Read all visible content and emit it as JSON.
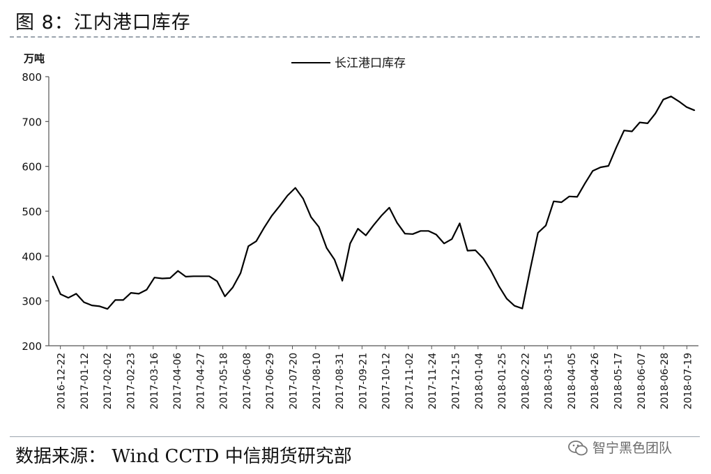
{
  "figure_title": "图 8：江内港口库存",
  "source": "数据来源： Wind CCTD 中信期货研究部",
  "watermark": "智宁黑色团队",
  "watermark_icon": "wechat-icon",
  "chart_data": {
    "type": "line",
    "title": "",
    "ylabel": "万吨",
    "xlabel": "",
    "ylim": [
      200,
      800
    ],
    "yticks": [
      200,
      300,
      400,
      500,
      600,
      700,
      800
    ],
    "legend_position": "top-center",
    "grid": false,
    "line_color": "#000000",
    "x_tick_labels": [
      "2016-12-22",
      "2017-01-12",
      "2017-02-02",
      "2017-02-23",
      "2017-03-16",
      "2017-04-06",
      "2017-04-27",
      "2017-05-18",
      "2017-06-08",
      "2017-06-29",
      "2017-07-20",
      "2017-08-10",
      "2017-08-31",
      "2017-09-21",
      "2017-10-12",
      "2017-11-02",
      "2017-11-24",
      "2017-12-15",
      "2018-01-04",
      "2018-01-25",
      "2018-02-22",
      "2018-03-15",
      "2018-04-05",
      "2018-04-26",
      "2018-05-17",
      "2018-06-07",
      "2018-06-28",
      "2018-07-19"
    ],
    "series": [
      {
        "name": "长江港口库存",
        "values": [
          355,
          315,
          307,
          316,
          297,
          290,
          288,
          282,
          302,
          302,
          318,
          316,
          325,
          352,
          350,
          351,
          367,
          354,
          355,
          355,
          355,
          344,
          310,
          330,
          362,
          422,
          433,
          463,
          490,
          512,
          535,
          552,
          528,
          487,
          465,
          418,
          392,
          345,
          428,
          461,
          446,
          469,
          490,
          508,
          474,
          450,
          449,
          456,
          456,
          448,
          428,
          438,
          473,
          412,
          413,
          395,
          367,
          333,
          305,
          289,
          283,
          370,
          452,
          468,
          522,
          520,
          533,
          532,
          562,
          590,
          598,
          601,
          642,
          680,
          678,
          698,
          696,
          718,
          749,
          756,
          745,
          732,
          725
        ]
      }
    ]
  }
}
